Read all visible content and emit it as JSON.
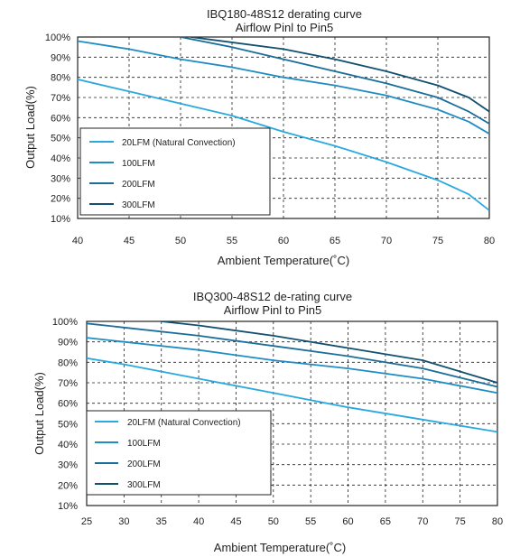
{
  "colors": {
    "20LFM": "#29a9df",
    "100LFM": "#1f8cc4",
    "200LFM": "#1a6e9a",
    "300LFM": "#12506f",
    "grid": "#222222"
  },
  "chart_data": [
    {
      "type": "line",
      "title": "IBQ180-48S12 derating curve",
      "subtitle": "Airflow Pinl to Pin5",
      "xlabel": "Ambient Temperature(˚C)",
      "ylabel": "Output Load(%)",
      "xlim": [
        40,
        80
      ],
      "ylim": [
        10,
        100
      ],
      "x_ticks": [
        40,
        45,
        50,
        55,
        60,
        65,
        70,
        75,
        80
      ],
      "y_ticks": [
        10,
        20,
        30,
        40,
        50,
        60,
        70,
        80,
        90,
        100
      ],
      "grid": true,
      "legend_position": "bottom-left",
      "series": [
        {
          "name": "20LFM (Natural Convection)",
          "color_key": "20LFM",
          "points": [
            [
              40,
              79
            ],
            [
              45,
              73
            ],
            [
              50,
              67
            ],
            [
              55,
              61
            ],
            [
              60,
              53
            ],
            [
              65,
              46
            ],
            [
              70,
              38
            ],
            [
              75,
              29
            ],
            [
              78,
              22
            ],
            [
              80,
              14
            ]
          ]
        },
        {
          "name": "100LFM",
          "color_key": "100LFM",
          "points": [
            [
              40,
              98
            ],
            [
              45,
              94
            ],
            [
              50,
              89
            ],
            [
              55,
              85
            ],
            [
              60,
              80
            ],
            [
              65,
              76
            ],
            [
              70,
              71
            ],
            [
              75,
              64
            ],
            [
              78,
              58
            ],
            [
              80,
              52
            ]
          ]
        },
        {
          "name": "200LFM",
          "color_key": "200LFM",
          "points": [
            [
              50,
              100
            ],
            [
              55,
              95
            ],
            [
              60,
              89
            ],
            [
              65,
              83
            ],
            [
              70,
              77
            ],
            [
              75,
              70
            ],
            [
              78,
              63
            ],
            [
              80,
              57
            ]
          ]
        },
        {
          "name": "300LFM",
          "color_key": "300LFM",
          "points": [
            [
              51,
              100
            ],
            [
              60,
              94
            ],
            [
              65,
              89
            ],
            [
              70,
              83
            ],
            [
              75,
              76
            ],
            [
              78,
              70
            ],
            [
              80,
              63
            ]
          ]
        }
      ]
    },
    {
      "type": "line",
      "title": "IBQ300-48S12 de-rating curve",
      "subtitle": "Airflow Pinl to Pin5",
      "xlabel": "Ambient Temperature(˚C)",
      "ylabel": "Output Load(%)",
      "xlim": [
        25,
        80
      ],
      "ylim": [
        10,
        100
      ],
      "x_ticks": [
        25,
        30,
        35,
        40,
        45,
        50,
        55,
        60,
        65,
        70,
        75,
        80
      ],
      "y_ticks": [
        10,
        20,
        30,
        40,
        50,
        60,
        70,
        80,
        90,
        100
      ],
      "grid": true,
      "legend_position": "bottom-left",
      "series": [
        {
          "name": "20LFM (Natural Convection)",
          "color_key": "20LFM",
          "points": [
            [
              25,
              82
            ],
            [
              30,
              79
            ],
            [
              40,
              72
            ],
            [
              50,
              65
            ],
            [
              60,
              58
            ],
            [
              70,
              52
            ],
            [
              80,
              46
            ]
          ]
        },
        {
          "name": "100LFM",
          "color_key": "100LFM",
          "points": [
            [
              25,
              92
            ],
            [
              30,
              90
            ],
            [
              40,
              86
            ],
            [
              50,
              81
            ],
            [
              60,
              77
            ],
            [
              70,
              72
            ],
            [
              80,
              65
            ]
          ]
        },
        {
          "name": "200LFM",
          "color_key": "200LFM",
          "points": [
            [
              25,
              99
            ],
            [
              30,
              97
            ],
            [
              40,
              93
            ],
            [
              50,
              88
            ],
            [
              60,
              83
            ],
            [
              70,
              77
            ],
            [
              80,
              68
            ]
          ]
        },
        {
          "name": "300LFM",
          "color_key": "300LFM",
          "points": [
            [
              35,
              100
            ],
            [
              40,
              98
            ],
            [
              50,
              93
            ],
            [
              60,
              87
            ],
            [
              70,
              81
            ],
            [
              80,
              70
            ]
          ]
        }
      ]
    }
  ]
}
